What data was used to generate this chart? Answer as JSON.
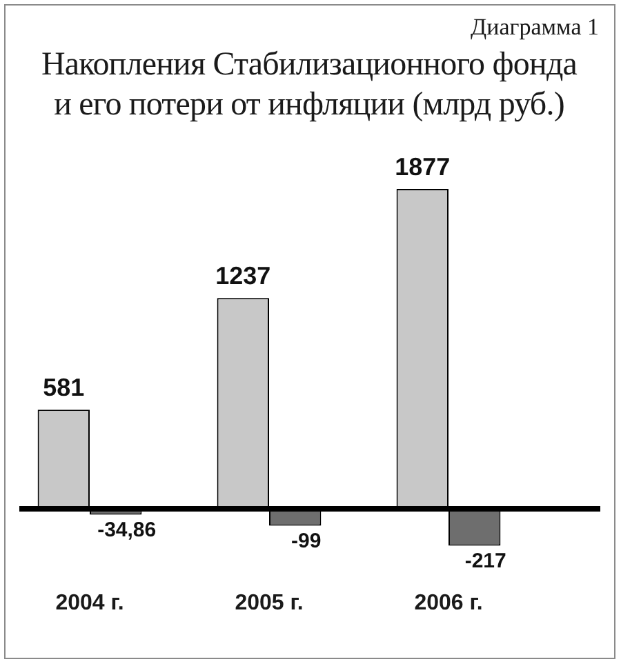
{
  "chart_data": {
    "type": "bar",
    "title": "Накопления Стабилизационного фонда и его потери от инфляции (млрд руб.)",
    "annotations": [
      "Диаграмма 1"
    ],
    "categories": [
      "2004 г.",
      "2005 г.",
      "2006 г."
    ],
    "series": [
      {
        "color": "#c8c8c8",
        "values": [
          581,
          1237,
          1877
        ],
        "value_labels": [
          "581",
          "1237",
          "1877"
        ]
      },
      {
        "color": "#6e6e6e",
        "values": [
          -34.86,
          -99,
          -217
        ],
        "value_labels": [
          "-34,86",
          "-99",
          "-217"
        ]
      }
    ],
    "grid": false,
    "legend": false,
    "tick_labels": "x"
  }
}
